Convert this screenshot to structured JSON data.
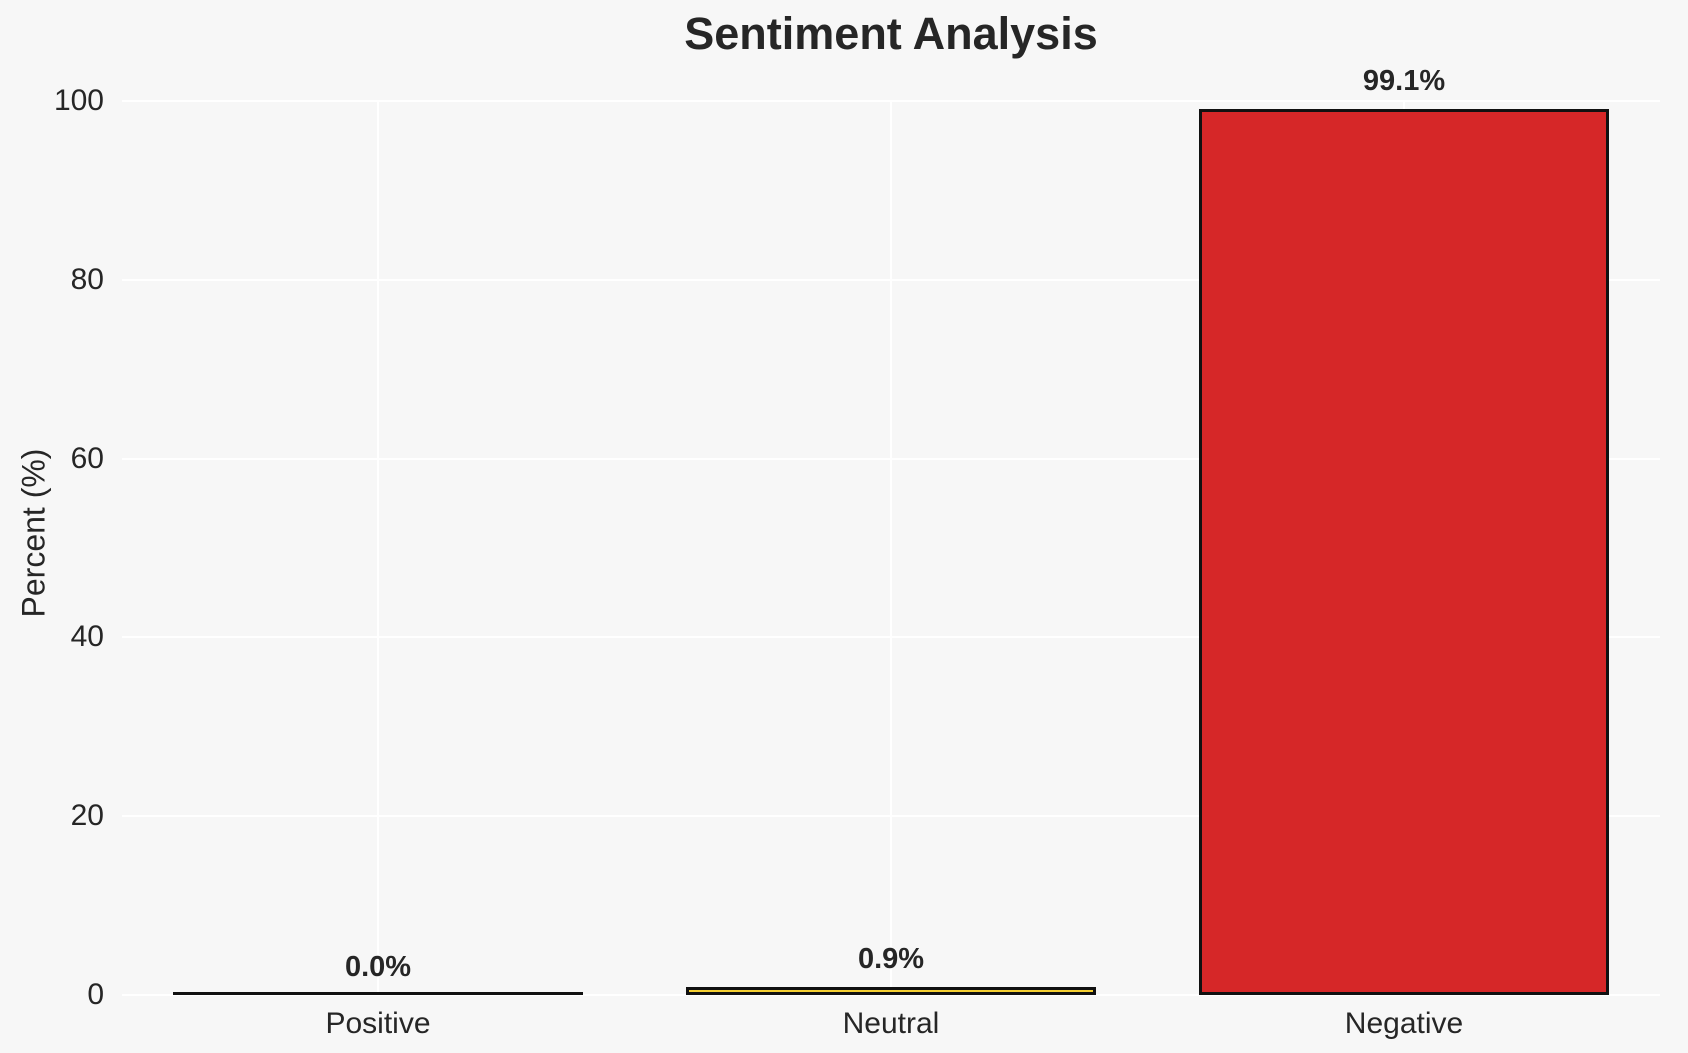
{
  "chart_data": {
    "type": "bar",
    "title": "Sentiment Analysis",
    "xlabel": "",
    "ylabel": "Percent (%)",
    "categories": [
      "Positive",
      "Neutral",
      "Negative"
    ],
    "values": [
      0.0,
      0.9,
      99.1
    ],
    "bar_labels": [
      "0.0%",
      "0.9%",
      "99.1%"
    ],
    "bar_colors": [
      "#111111",
      "#f5cf31",
      "#d62728"
    ],
    "bar_edge_color": "#111111",
    "yticks": [
      0,
      20,
      40,
      60,
      80,
      100
    ],
    "ylim": [
      0,
      100
    ],
    "grid": "on",
    "legend": "none",
    "background_color": "#f7f7f7",
    "gridline_color": "#ffffff",
    "text_color": "#262626"
  }
}
